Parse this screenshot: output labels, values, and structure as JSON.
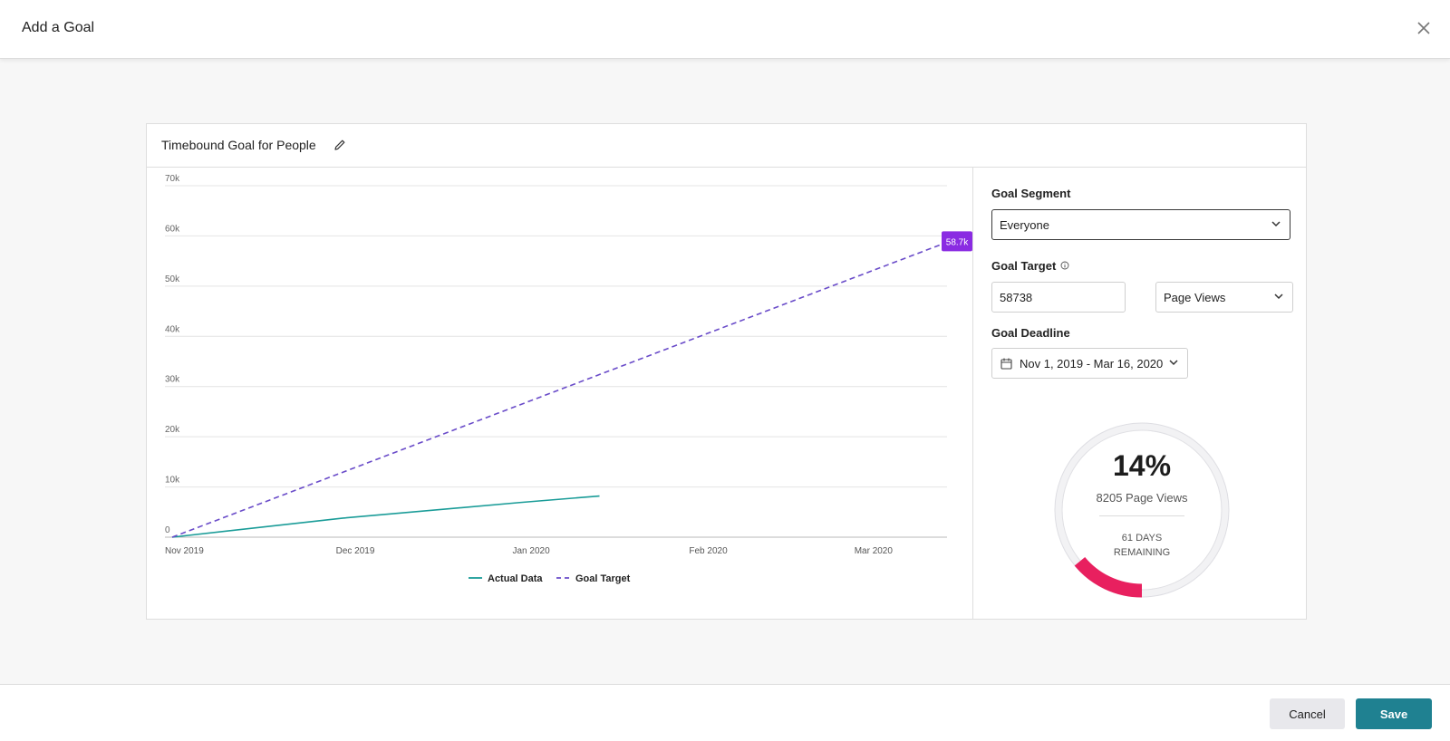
{
  "header": {
    "title": "Add a Goal"
  },
  "card": {
    "title": "Timebound Goal for People"
  },
  "side": {
    "segment_label": "Goal Segment",
    "segment_value": "Everyone",
    "target_label": "Goal Target",
    "target_value": "58738",
    "target_unit": "Page Views",
    "deadline_label": "Goal Deadline",
    "deadline_value": "Nov 1, 2019 - Mar 16, 2020"
  },
  "progress": {
    "percent_label": "14%",
    "percent_value": 0.14,
    "count_label": "8205 Page Views",
    "days_label": "61 DAYS REMAINING"
  },
  "footer": {
    "cancel_label": "Cancel",
    "save_label": "Save"
  },
  "colors": {
    "accent": "#1f8191",
    "actual": "#1a9c98",
    "goal": "#6a4cc9",
    "progress": "#e8205f",
    "badge": "#8a2be2"
  },
  "chart_data": {
    "type": "line",
    "title": "",
    "xlabel": "",
    "ylabel": "",
    "x_ticks": [
      "Nov 2019",
      "Dec 2019",
      "Jan 2020",
      "Feb 2020",
      "Mar 2020"
    ],
    "y_ticks": [
      "0",
      "10k",
      "20k",
      "30k",
      "40k",
      "50k",
      "60k",
      "70k"
    ],
    "ylim": [
      0,
      70000
    ],
    "xlim": [
      "2019-11-01",
      "2020-03-16"
    ],
    "grid": true,
    "legend_position": "bottom",
    "series": [
      {
        "name": "Actual Data",
        "style": "solid",
        "x": [
          "2019-11-01",
          "2019-12-01",
          "2020-01-01",
          "2020-01-15"
        ],
        "values": [
          0,
          3800,
          6900,
          8205
        ]
      },
      {
        "name": "Goal Target",
        "style": "dashed",
        "x": [
          "2019-11-01",
          "2020-03-16"
        ],
        "values": [
          0,
          58738
        ]
      }
    ],
    "annotations": [
      {
        "x": "2020-03-16",
        "y": 58738,
        "text": "58.7k"
      }
    ]
  }
}
